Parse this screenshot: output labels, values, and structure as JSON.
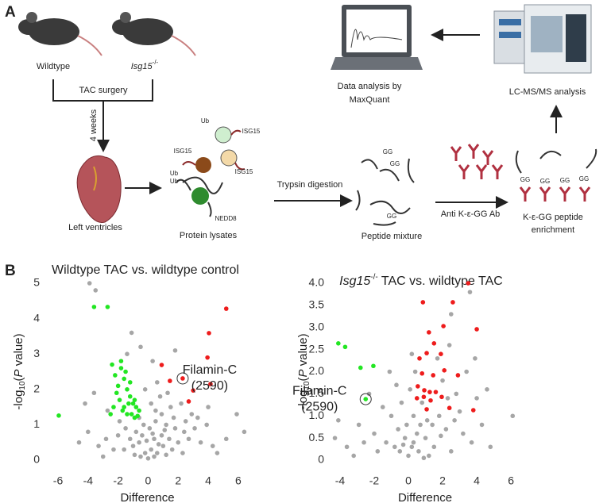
{
  "panel_a": {
    "label": "A",
    "wildtype": "Wildtype",
    "knockout": [
      "Isg15",
      "-/-"
    ],
    "surgery": "TAC surgery",
    "duration": "4 weeks",
    "tissue": "Left ventricles",
    "lysate": {
      "title": "Protein lysates",
      "tags": [
        "Ub",
        "Ub",
        "Ub",
        "ISG15",
        "ISG15",
        "ISG15",
        "NEDD8"
      ]
    },
    "digestion": "Trypsin digestion",
    "peptides": {
      "title": "Peptide mixture",
      "tags": [
        "GG",
        "GG",
        "GG"
      ]
    },
    "antibody": "Anti K-ε-GG Ab",
    "enrichment": {
      "lines": [
        "K-ε-GG peptide",
        "enrichment"
      ],
      "tags": [
        "GG",
        "GG",
        "GG",
        "GG"
      ]
    },
    "msms": "LC-MS/MS  analysis",
    "analysis": [
      "Data analysis by",
      "MaxQuant"
    ]
  },
  "panel_b_label": "B",
  "chart_data": [
    {
      "type": "scatter",
      "title": [
        "Wildtype TAC vs. wildtype control"
      ],
      "xlabel": "Difference",
      "ylabel": [
        "-log",
        "10",
        "(",
        "P",
        " value)"
      ],
      "xlim": [
        -6.9,
        6.8
      ],
      "ylim": [
        -0.25,
        5.3
      ],
      "xticks": [
        -6,
        -4,
        -2,
        0,
        2,
        4,
        6
      ],
      "yticks": [
        0,
        1,
        2,
        3,
        4,
        5
      ],
      "series": [
        {
          "color": "#a6a6a6",
          "x": [
            -3.9,
            -3.5,
            -1.1,
            -1.4,
            -0.5,
            0.3,
            1.8,
            0.6,
            -0.2,
            2.2,
            1.5,
            0.9,
            0.5,
            -0.3,
            0.1,
            1.2,
            1.8,
            2.5,
            3.1,
            -0.8,
            -1.5,
            -2.0,
            -2.8,
            -3.3,
            -4.0,
            -4.6,
            -3.6,
            -4.2,
            -2.7,
            0.4,
            0.9,
            1.4,
            2.0,
            2.7,
            3.5,
            4.3,
            5.2,
            6.4,
            -0.6,
            -1.0,
            -1.6,
            -2.3,
            0.2,
            0.6,
            1.0,
            1.6,
            2.3,
            -0.2,
            -0.5,
            0.0,
            0.4,
            -0.9,
            1.2,
            0.7,
            -0.1,
            0.3,
            -0.4,
            1.1,
            0.5,
            -0.6,
            0.8,
            1.3,
            2.9,
            3.3,
            4.0,
            3.9,
            4.6,
            -3.0,
            -1.9,
            -1.2,
            0.2,
            1.7,
            2.4,
            5.9
          ],
          "y": [
            5.0,
            4.8,
            3.6,
            3.0,
            3.2,
            2.8,
            3.1,
            2.2,
            2.0,
            1.6,
            1.5,
            1.3,
            1.1,
            1.0,
            0.9,
            1.0,
            0.9,
            1.1,
            0.9,
            0.8,
            0.9,
            0.7,
            0.6,
            0.4,
            0.8,
            0.5,
            1.9,
            1.6,
            1.4,
            0.6,
            0.7,
            0.6,
            0.5,
            0.6,
            0.5,
            0.4,
            0.6,
            0.8,
            0.5,
            0.4,
            0.3,
            0.3,
            0.3,
            0.2,
            0.4,
            0.3,
            0.2,
            0.2,
            0.1,
            0.05,
            0.1,
            0.15,
            0.15,
            0.45,
            0.55,
            0.75,
            0.7,
            0.85,
            1.4,
            1.2,
            1.8,
            1.9,
            1.3,
            1.2,
            1.5,
            1.0,
            0.2,
            0.1,
            1.1,
            0.6,
            1.6,
            1.2,
            0.8,
            1.3
          ]
        },
        {
          "color": "#22e622",
          "x": [
            -3.6,
            -2.7,
            -5.95,
            -2.4,
            -2.2,
            -2.0,
            -1.8,
            -1.6,
            -1.4,
            -1.2,
            -1.0,
            -0.8,
            -0.6,
            -2.3,
            -2.1,
            -1.9,
            -1.7,
            -1.5,
            -1.3,
            -1.1,
            -0.9,
            -0.7,
            -2.5,
            -1.6,
            -1.2,
            -0.9,
            -1.8,
            -1.4
          ],
          "y": [
            4.33,
            4.33,
            1.26,
            2.7,
            2.4,
            2.1,
            2.6,
            2.3,
            2.0,
            1.8,
            1.6,
            1.5,
            1.4,
            1.5,
            1.9,
            1.7,
            1.4,
            2.5,
            1.6,
            1.3,
            1.2,
            1.25,
            1.3,
            1.5,
            2.2,
            1.7,
            2.8,
            1.3
          ]
        },
        {
          "color": "#ee1c1c",
          "x": [
            5.2,
            4.05,
            3.95,
            0.9,
            2.3,
            4.15,
            1.45,
            3.0,
            2.7
          ],
          "y": [
            4.28,
            3.59,
            2.9,
            2.69,
            2.31,
            2.15,
            2.24,
            1.97,
            1.66
          ]
        }
      ],
      "annotation": {
        "lines": [
          "Filamin-C",
          "(2590)"
        ],
        "x": 2.3,
        "y": 2.31
      }
    },
    {
      "type": "scatter",
      "title": [
        "Isg15",
        "-/-",
        " TAC vs. wildtype TAC"
      ],
      "xlabel": "Difference",
      "ylabel": [
        "-log",
        "10",
        "(",
        "P",
        " value)"
      ],
      "xlim": [
        -4.65,
        6.6
      ],
      "ylim": [
        -0.2,
        4.2
      ],
      "xticks": [
        -4,
        -2,
        0,
        2,
        4,
        6
      ],
      "yticks": [
        0,
        0.5,
        {
          "value": 1,
          "label": "1.0"
        },
        1.5,
        {
          "value": 2,
          "label": "2.0"
        },
        2.5,
        {
          "value": 3,
          "label": "3.0"
        },
        3.5,
        {
          "value": 4,
          "label": "4.0"
        }
      ],
      "series": [
        {
          "color": "#a6a6a6",
          "x": [
            3.6,
            2.5,
            -2.3,
            -4.3,
            -3.6,
            -2.9,
            -2.0,
            -1.5,
            -1.0,
            -0.6,
            -0.2,
            0.2,
            0.5,
            0.3,
            -0.4,
            0.1,
            0.4,
            -0.8,
            -1.3,
            0.0,
            0.6,
            1.0,
            1.4,
            1.8,
            2.2,
            2.7,
            3.2,
            3.7,
            4.3,
            4.8,
            6.1,
            1.7,
            2.0,
            2.3,
            3.0,
            1.1,
            0.8,
            -0.1,
            -0.5,
            -1.8,
            -2.6,
            -3.2,
            -4.1,
            0.9,
            1.5,
            2.5,
            1.2,
            0.3,
            -0.3,
            0.7,
            1.9,
            2.8,
            3.4,
            2.4,
            0.2,
            -0.7,
            -1.1,
            4.0,
            4.6,
            3.9
          ],
          "y": [
            3.8,
            3.3,
            1.5,
            0.5,
            0.3,
            0.8,
            0.6,
            1.2,
            1.0,
            0.7,
            0.5,
            0.3,
            0.6,
            1.0,
            1.3,
            1.6,
            2.0,
            0.3,
            0.4,
            0.1,
            0.2,
            0.5,
            0.8,
            1.0,
            0.7,
            0.9,
            0.6,
            0.4,
            0.8,
            0.3,
            1.0,
            2.3,
            1.8,
            1.4,
            1.1,
            0.9,
            1.3,
            0.8,
            0.2,
            0.2,
            0.4,
            0.1,
            0.9,
            0.05,
            0.3,
            0.2,
            0.1,
            0.4,
            0.35,
            0.8,
            0.55,
            1.5,
            2.0,
            2.6,
            2.4,
            1.7,
            2.0,
            1.4,
            1.6,
            2.3
          ]
        },
        {
          "color": "#22e622",
          "x": [
            -4.1,
            -3.7,
            -2.8,
            -2.05,
            -2.5
          ],
          "y": [
            2.64,
            2.56,
            2.09,
            2.13,
            1.38
          ]
        },
        {
          "color": "#ee1c1c",
          "x": [
            3.5,
            2.6,
            0.85,
            4.0,
            2.05,
            1.2,
            1.5,
            1.07,
            1.9,
            0.65,
            2.1,
            0.8,
            1.45,
            2.9,
            0.55,
            0.93,
            1.25,
            1.6,
            1.95,
            0.9,
            1.07,
            2.4,
            3.8,
            0.5,
            1.3
          ],
          "y": [
            4.0,
            3.57,
            3.57,
            2.96,
            3.03,
            2.89,
            2.64,
            2.42,
            2.4,
            2.3,
            2.03,
            1.96,
            1.92,
            1.92,
            1.67,
            1.58,
            1.54,
            1.54,
            1.43,
            1.43,
            1.15,
            1.18,
            1.13,
            1.4,
            1.35
          ]
        }
      ],
      "annotation": {
        "lines": [
          "Filamin-C",
          "(2590)"
        ],
        "x": -2.5,
        "y": 1.38
      }
    }
  ]
}
